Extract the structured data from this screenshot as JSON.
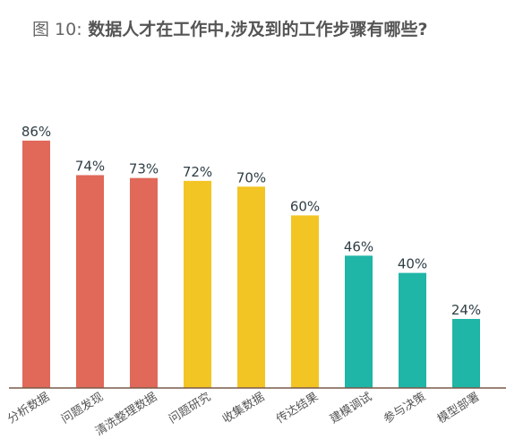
{
  "header": {
    "title_prefix": "图 10:",
    "title_main": " 数据人才在工作中,涉及到的工作步骤有哪些?"
  },
  "colors": {
    "red": "#E0695A",
    "yellow": "#F2C524",
    "teal": "#1FB5A7",
    "axis": "#7A5A48",
    "label": "#2F3E45"
  },
  "chart_data": {
    "type": "bar",
    "title": "图 10: 数据人才在工作中,涉及到的工作步骤有哪些?",
    "categories": [
      "分析数据",
      "问题发现",
      "清洗整理数据",
      "问题研究",
      "收集数据",
      "传达结果",
      "建模调试",
      "参与决策",
      "模型部署"
    ],
    "values": [
      86,
      74,
      73,
      72,
      70,
      60,
      46,
      40,
      24
    ],
    "value_labels": [
      "86%",
      "74%",
      "73%",
      "72%",
      "70%",
      "60%",
      "46%",
      "40%",
      "24%"
    ],
    "bar_colors": [
      "red",
      "red",
      "red",
      "yellow",
      "yellow",
      "yellow",
      "teal",
      "teal",
      "teal"
    ],
    "ylim": [
      0,
      100
    ],
    "xlabel": "",
    "ylabel": "",
    "grid": false,
    "legend": "none"
  }
}
